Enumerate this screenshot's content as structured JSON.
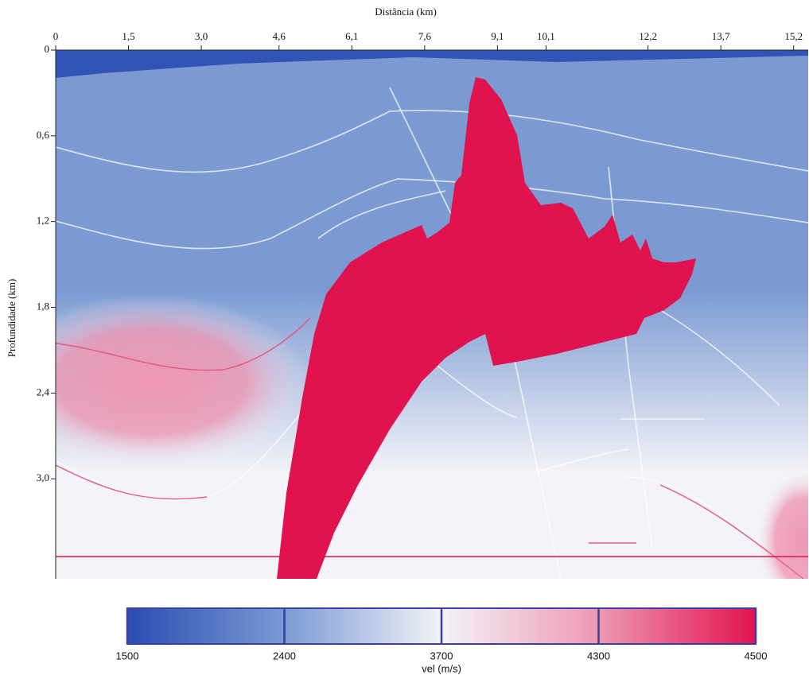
{
  "chart_data": {
    "type": "heatmap",
    "xlabel": "Distância (km)",
    "ylabel": "Profundidade (km)",
    "xlim": [
      0,
      15.5
    ],
    "ylim": [
      0,
      3.7
    ],
    "y_inverted": true,
    "xticks": [
      0,
      {
        "value": 1.5,
        "label": "1,5"
      },
      {
        "value": 3.0,
        "label": "3,0"
      },
      {
        "value": 4.6,
        "label": "4,6"
      },
      {
        "value": 6.1,
        "label": "6,1"
      },
      {
        "value": 7.6,
        "label": "7,6"
      },
      {
        "value": 9.1,
        "label": "9,1"
      },
      {
        "value": 10.1,
        "label": "10,1"
      },
      {
        "value": 12.2,
        "label": "12,2"
      },
      {
        "value": 13.7,
        "label": "13,7"
      },
      {
        "value": 15.2,
        "label": "15,2"
      }
    ],
    "yticks": [
      0,
      {
        "value": 0.6,
        "label": "0,6"
      },
      {
        "value": 1.2,
        "label": "1,2"
      },
      {
        "value": 1.8,
        "label": "1,8"
      },
      {
        "value": 2.4,
        "label": "2,4"
      },
      {
        "value": 3.0,
        "label": "3,0"
      }
    ],
    "colorbar": {
      "label": "vel (m/s)",
      "ticks": [
        1500,
        2400,
        3700,
        4300,
        4500
      ],
      "colors": [
        "#2a4cb2",
        "#7b9ad2",
        "#f3f3f8",
        "#ee98b3",
        "#e0134f"
      ]
    }
  }
}
